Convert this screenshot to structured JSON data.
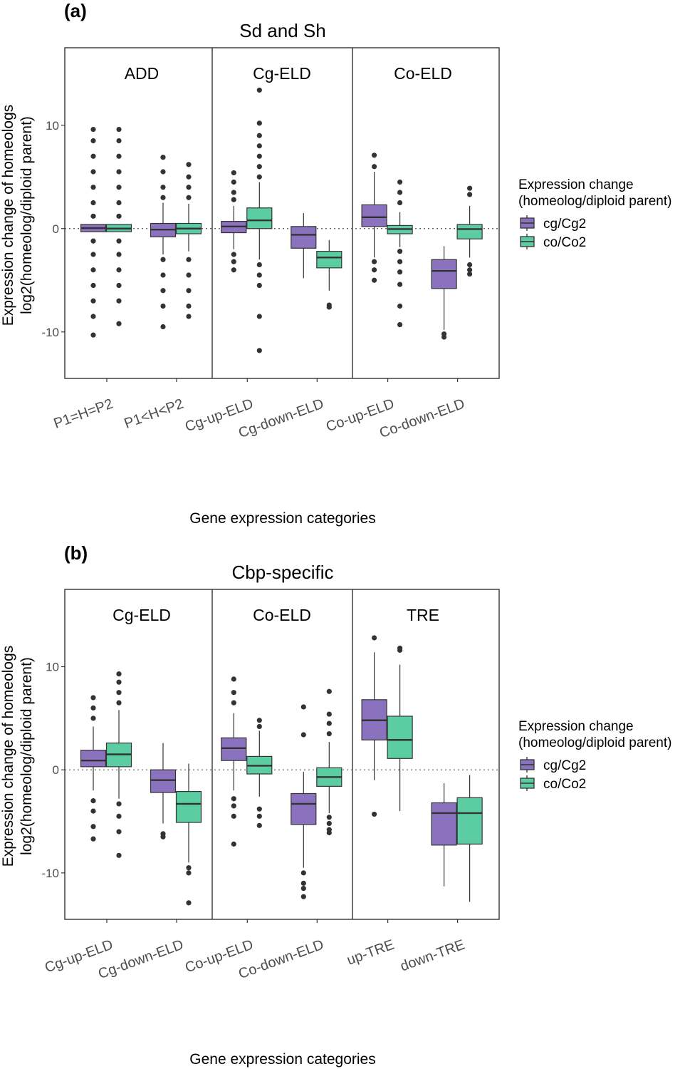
{
  "chart_data": [
    {
      "type": "boxplot",
      "panel_label": "(a)",
      "title": "Sd and Sh",
      "xlabel": "Gene expression categories",
      "ylabel": [
        "Expression change of homeologs",
        "log2(homeolog/diploid parent)"
      ],
      "ylim": [
        -14.5,
        17.5
      ],
      "yticks": [
        -10,
        0,
        10
      ],
      "ytick_labels": [
        "-10",
        "0",
        "10"
      ],
      "hline": 0,
      "series_names": [
        "cg/Cg2",
        "co/Co2"
      ],
      "facets": [
        {
          "label": "ADD",
          "categories": [
            {
              "name": "P1=H=P2",
              "boxes": [
                {
                  "q1": -0.3,
                  "median": 0.05,
                  "q3": 0.4,
                  "wlo": -0.3,
                  "whi": 0.4,
                  "outliers": [
                    9.6,
                    8.5,
                    7,
                    5.5,
                    4,
                    2.5,
                    1.2,
                    -1.2,
                    -2.5,
                    -4,
                    -5.5,
                    -7,
                    -8.5,
                    -10.3
                  ]
                },
                {
                  "q1": -0.3,
                  "median": 0.0,
                  "q3": 0.4,
                  "wlo": -0.3,
                  "whi": 0.4,
                  "outliers": [
                    9.6,
                    8.5,
                    7,
                    5.5,
                    4,
                    2.5,
                    1.2,
                    -1.2,
                    -2.5,
                    -4,
                    -5.5,
                    -7,
                    -9.2
                  ]
                }
              ]
            },
            {
              "name": "P1<H<P2",
              "boxes": [
                {
                  "q1": -0.8,
                  "median": -0.1,
                  "q3": 0.5,
                  "wlo": -2.5,
                  "whi": 2.5,
                  "outliers": [
                    6.9,
                    5.5,
                    4,
                    3,
                    -3,
                    -4.5,
                    -6,
                    -7.5,
                    -9.5
                  ]
                },
                {
                  "q1": -0.5,
                  "median": 0.0,
                  "q3": 0.5,
                  "wlo": -2.2,
                  "whi": 2.4,
                  "outliers": [
                    6.2,
                    5,
                    4,
                    3,
                    -3,
                    -4.5,
                    -6,
                    -7.5,
                    -8.5
                  ]
                }
              ]
            }
          ]
        },
        {
          "label": "Cg-ELD",
          "categories": [
            {
              "name": "Cg-up-ELD",
              "boxes": [
                {
                  "q1": -0.4,
                  "median": 0.2,
                  "q3": 0.7,
                  "wlo": -2.0,
                  "whi": 2.2,
                  "outliers": [
                    5.4,
                    4.5,
                    3.5,
                    2.8,
                    -2.5,
                    -3.2,
                    -4.0
                  ]
                },
                {
                  "q1": 0.0,
                  "median": 0.8,
                  "q3": 2.0,
                  "wlo": -3.0,
                  "whi": 4.5,
                  "outliers": [
                    13.4,
                    10.2,
                    9,
                    8,
                    7,
                    6,
                    5,
                    -3.5,
                    -4.5,
                    -5.5,
                    -8.5,
                    -11.8
                  ]
                }
              ]
            },
            {
              "name": "Cg-down-ELD",
              "boxes": [
                {
                  "q1": -1.9,
                  "median": -0.6,
                  "q3": 0.2,
                  "wlo": -4.8,
                  "whi": 1.5,
                  "outliers": []
                },
                {
                  "q1": -3.8,
                  "median": -2.8,
                  "q3": -2.2,
                  "wlo": -6.0,
                  "whi": -1.1,
                  "outliers": [
                    -7.4,
                    -7.6
                  ]
                }
              ]
            }
          ]
        },
        {
          "label": "Co-ELD",
          "categories": [
            {
              "name": "Co-up-ELD",
              "boxes": [
                {
                  "q1": 0.2,
                  "median": 1.1,
                  "q3": 2.3,
                  "wlo": -2.8,
                  "whi": 5.5,
                  "outliers": [
                    7.1,
                    6.0,
                    -3.2,
                    -4.0,
                    -5.0
                  ]
                },
                {
                  "q1": -0.5,
                  "median": -0.05,
                  "q3": 0.3,
                  "wlo": -1.8,
                  "whi": 1.6,
                  "outliers": [
                    4.5,
                    3.5,
                    2.5,
                    -2.2,
                    -3.2,
                    -4.2,
                    -5.4,
                    -7.5,
                    -9.3
                  ]
                }
              ]
            },
            {
              "name": "Co-down-ELD",
              "boxes": [
                {
                  "q1": -5.8,
                  "median": -4.1,
                  "q3": -3.0,
                  "wlo": -9.8,
                  "whi": -1.7,
                  "outliers": [
                    -10.2,
                    -10.5
                  ]
                },
                {
                  "q1": -1.0,
                  "median": -0.05,
                  "q3": 0.4,
                  "wlo": -2.8,
                  "whi": 2.2,
                  "outliers": [
                    3.9,
                    3.3,
                    -3.5,
                    -4.0,
                    -4.4
                  ]
                }
              ]
            }
          ]
        }
      ]
    },
    {
      "type": "boxplot",
      "panel_label": "(b)",
      "title": "Cbp-specific",
      "xlabel": "Gene expression categories",
      "ylabel": [
        "Expression change of homeologs",
        "log2(homeolog/diploid parent)"
      ],
      "ylim": [
        -14.5,
        17.5
      ],
      "yticks": [
        -10,
        0,
        10
      ],
      "ytick_labels": [
        "-10",
        "0",
        "10"
      ],
      "hline": 0,
      "series_names": [
        "cg/Cg2",
        "co/Co2"
      ],
      "facets": [
        {
          "label": "Cg-ELD",
          "categories": [
            {
              "name": "Cg-up-ELD",
              "boxes": [
                {
                  "q1": 0.3,
                  "median": 0.9,
                  "q3": 1.9,
                  "wlo": -2.0,
                  "whi": 4.2,
                  "outliers": [
                    7.0,
                    6.0,
                    5.0,
                    -3.0,
                    -4.0,
                    -5.5,
                    -6.7
                  ]
                },
                {
                  "q1": 0.3,
                  "median": 1.5,
                  "q3": 2.6,
                  "wlo": -2.8,
                  "whi": 5.8,
                  "outliers": [
                    9.3,
                    8.5,
                    7.5,
                    6.5,
                    -3.3,
                    -4.5,
                    -6.0,
                    -8.3
                  ]
                }
              ]
            },
            {
              "name": "Cg-down-ELD",
              "boxes": [
                {
                  "q1": -2.2,
                  "median": -1.0,
                  "q3": 0.0,
                  "wlo": -5.2,
                  "whi": 2.6,
                  "outliers": [
                    -6.2,
                    -6.5
                  ]
                },
                {
                  "q1": -5.1,
                  "median": -3.3,
                  "q3": -2.1,
                  "wlo": -9.0,
                  "whi": 0.6,
                  "outliers": [
                    -9.5,
                    -10.0,
                    -12.9
                  ]
                }
              ]
            }
          ]
        },
        {
          "label": "Co-ELD",
          "categories": [
            {
              "name": "Co-up-ELD",
              "boxes": [
                {
                  "q1": 0.9,
                  "median": 2.1,
                  "q3": 3.1,
                  "wlo": -2.0,
                  "whi": 5.5,
                  "outliers": [
                    8.8,
                    7.5,
                    6.5,
                    -2.8,
                    -3.5,
                    -4.5,
                    -7.2
                  ]
                },
                {
                  "q1": -0.4,
                  "median": 0.4,
                  "q3": 1.3,
                  "wlo": -2.6,
                  "whi": 3.8,
                  "outliers": [
                    4.8,
                    4.2,
                    -3.8,
                    -4.5,
                    -5.4
                  ]
                }
              ]
            },
            {
              "name": "Co-down-ELD",
              "boxes": [
                {
                  "q1": -5.3,
                  "median": -3.3,
                  "q3": -2.3,
                  "wlo": -9.5,
                  "whi": -0.2,
                  "outliers": [
                    6.1,
                    3.4,
                    -10,
                    -11,
                    -11.5,
                    -12.3
                  ]
                },
                {
                  "q1": -1.6,
                  "median": -0.7,
                  "q3": 0.2,
                  "wlo": -4.2,
                  "whi": 2.7,
                  "outliers": [
                    7.6,
                    5.4,
                    4.5,
                    3.5,
                    -4.6,
                    -5.2,
                    -5.8,
                    -6.1
                  ]
                }
              ]
            }
          ]
        },
        {
          "label": "TRE",
          "categories": [
            {
              "name": "up-TRE",
              "boxes": [
                {
                  "q1": 2.9,
                  "median": 4.8,
                  "q3": 6.8,
                  "wlo": -1.0,
                  "whi": 11.4,
                  "outliers": [
                    12.8,
                    -4.3
                  ]
                },
                {
                  "q1": 1.1,
                  "median": 2.9,
                  "q3": 5.2,
                  "wlo": -4.0,
                  "whi": 10.2,
                  "outliers": [
                    11.6,
                    11.8
                  ]
                }
              ]
            },
            {
              "name": "down-TRE",
              "boxes": [
                {
                  "q1": -7.3,
                  "median": -4.2,
                  "q3": -3.2,
                  "wlo": -11.3,
                  "whi": -1.3,
                  "outliers": []
                },
                {
                  "q1": -7.2,
                  "median": -4.2,
                  "q3": -2.7,
                  "wlo": -12.8,
                  "whi": -0.5,
                  "outliers": []
                }
              ]
            }
          ]
        }
      ]
    }
  ],
  "legend": {
    "title_line1": "Expression change",
    "title_line2": "(homeolog/diploid parent)",
    "items": [
      {
        "label": "cg/Cg2",
        "color": "#8B72BE"
      },
      {
        "label": "co/Co2",
        "color": "#5CCDA3"
      }
    ]
  },
  "colors": {
    "series": [
      "#8B72BE",
      "#5CCDA3"
    ],
    "line": "#333333",
    "point": "#333333"
  }
}
